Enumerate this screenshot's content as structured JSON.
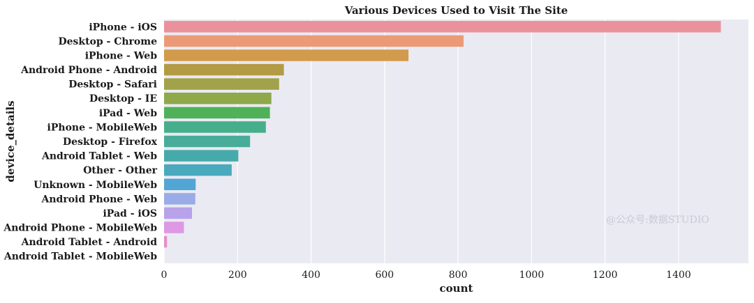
{
  "chart_data": {
    "type": "bar",
    "orientation": "horizontal",
    "title": "Various Devices Used to Visit The Site",
    "xlabel": "count",
    "ylabel": "device_details",
    "xlim": [
      0,
      1590
    ],
    "xticks": [
      0,
      200,
      400,
      600,
      800,
      1000,
      1200,
      1400
    ],
    "grid": true,
    "categories": [
      "iPhone - iOS",
      "Desktop - Chrome",
      "iPhone - Web",
      "Android Phone - Android",
      "Desktop - Safari",
      "Desktop - IE",
      "iPad - Web",
      "iPhone - MobileWeb",
      "Desktop - Firefox",
      "Android Tablet - Web",
      "Other - Other",
      "Unknown - MobileWeb",
      "Android Phone - Web",
      "iPad - iOS",
      "Android Phone - MobileWeb",
      "Android Tablet - Android",
      "Android Tablet - MobileWeb"
    ],
    "values": [
      1515,
      815,
      665,
      326,
      313,
      292,
      288,
      277,
      234,
      202,
      184,
      86,
      85,
      76,
      54,
      8,
      0
    ],
    "colors": [
      "#eb919c",
      "#ec9a76",
      "#d29a4c",
      "#b39b45",
      "#a2a24a",
      "#8ea84a",
      "#4fb258",
      "#46ae8a",
      "#47ad99",
      "#47aaaa",
      "#4aa9bd",
      "#52a6d6",
      "#9aace8",
      "#b8a2ea",
      "#de98e4",
      "#e78dc8",
      "#eb90b0"
    ]
  },
  "watermark": "@公众号:数据STUDIO",
  "style": {
    "plot_bg": "#eaeaf2",
    "grid_color": "#ffffff"
  }
}
